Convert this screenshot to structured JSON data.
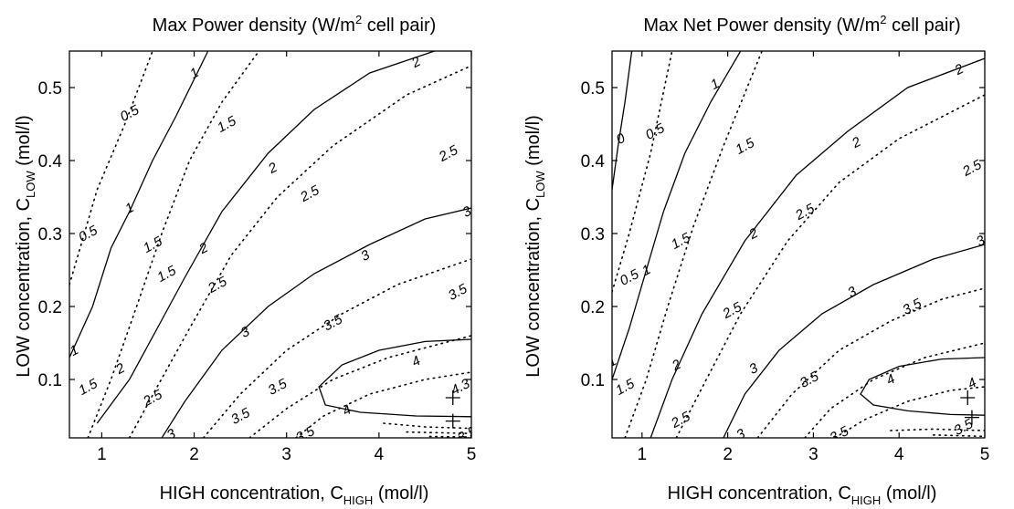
{
  "chart_data": [
    {
      "type": "contour",
      "title_main": "Max Power density (W/m",
      "title_sup": "2",
      "title_end": " cell pair)",
      "xlabel_main": "HIGH concentration, C",
      "xlabel_sub": "HIGH",
      "xlabel_end": " (mol/l)",
      "ylabel_main": "LOW concentration, C",
      "ylabel_sub": "LOW",
      "ylabel_end": " (mol/l)",
      "xlim": [
        0.65,
        5.0
      ],
      "ylim": [
        0.02,
        0.55
      ],
      "xticks": [
        "1",
        "2",
        "3",
        "4",
        "5"
      ],
      "xtick_values": [
        1,
        2,
        3,
        4,
        5
      ],
      "yticks": [
        "0.1",
        "0.2",
        "0.3",
        "0.4",
        "0.5"
      ],
      "ytick_values": [
        0.1,
        0.2,
        0.3,
        0.4,
        0.5
      ],
      "solid_contours": [
        {
          "level": 1,
          "points": [
            [
              0.65,
              0.13
            ],
            [
              0.9,
              0.2
            ],
            [
              1.1,
              0.28
            ],
            [
              1.3,
              0.33
            ],
            [
              1.55,
              0.4
            ],
            [
              1.8,
              0.46
            ],
            [
              2.15,
              0.55
            ]
          ]
        },
        {
          "level": 2,
          "points": [
            [
              0.95,
              0.04
            ],
            [
              1.3,
              0.1
            ],
            [
              1.6,
              0.17
            ],
            [
              1.9,
              0.24
            ],
            [
              2.3,
              0.33
            ],
            [
              2.8,
              0.41
            ],
            [
              3.3,
              0.47
            ],
            [
              3.9,
              0.52
            ],
            [
              4.6,
              0.55
            ]
          ]
        },
        {
          "level": 3,
          "points": [
            [
              1.65,
              0.02
            ],
            [
              1.9,
              0.07
            ],
            [
              2.3,
              0.14
            ],
            [
              2.8,
              0.2
            ],
            [
              3.3,
              0.245
            ],
            [
              3.9,
              0.285
            ],
            [
              4.5,
              0.32
            ],
            [
              5.0,
              0.335
            ]
          ]
        },
        {
          "level": 4,
          "points": [
            [
              5.0,
              0.155
            ],
            [
              4.5,
              0.152
            ],
            [
              4.0,
              0.14
            ],
            [
              3.6,
              0.12
            ],
            [
              3.35,
              0.09
            ],
            [
              3.42,
              0.065
            ],
            [
              3.8,
              0.055
            ],
            [
              4.4,
              0.05
            ],
            [
              5.0,
              0.049
            ]
          ]
        }
      ],
      "dotted_contours": [
        {
          "points": [
            [
              0.65,
              0.23
            ],
            [
              0.95,
              0.36
            ],
            [
              1.25,
              0.45
            ],
            [
              1.55,
              0.55
            ]
          ]
        },
        {
          "points": [
            [
              0.85,
              0.02
            ],
            [
              1.1,
              0.1
            ],
            [
              1.35,
              0.19
            ],
            [
              1.65,
              0.3
            ],
            [
              1.95,
              0.4
            ],
            [
              2.3,
              0.48
            ],
            [
              2.7,
              0.55
            ]
          ]
        },
        {
          "points": [
            [
              1.3,
              0.02
            ],
            [
              1.6,
              0.09
            ],
            [
              1.95,
              0.17
            ],
            [
              2.4,
              0.27
            ],
            [
              2.9,
              0.35
            ],
            [
              3.5,
              0.42
            ],
            [
              4.3,
              0.49
            ],
            [
              5.0,
              0.53
            ]
          ]
        },
        {
          "points": [
            [
              2.1,
              0.02
            ],
            [
              2.5,
              0.08
            ],
            [
              3.0,
              0.14
            ],
            [
              3.6,
              0.19
            ],
            [
              4.2,
              0.23
            ],
            [
              5.0,
              0.265
            ]
          ]
        },
        {
          "points": [
            [
              2.6,
              0.02
            ],
            [
              3.0,
              0.06
            ],
            [
              3.5,
              0.1
            ],
            [
              4.1,
              0.13
            ],
            [
              5.0,
              0.16
            ]
          ]
        },
        {
          "points": [
            [
              3.1,
              0.02
            ],
            [
              3.4,
              0.05
            ],
            [
              3.9,
              0.08
            ],
            [
              4.5,
              0.1
            ],
            [
              5.0,
              0.11
            ]
          ]
        },
        {
          "points": [
            [
              4.05,
              0.04
            ],
            [
              4.5,
              0.035
            ],
            [
              5.0,
              0.033
            ]
          ]
        },
        {
          "points": [
            [
              4.3,
              0.028
            ],
            [
              5.0,
              0.026
            ]
          ]
        },
        {
          "points": [
            [
              4.55,
              0.022
            ],
            [
              5.0,
              0.021
            ]
          ]
        }
      ],
      "contour_labels": [
        {
          "text": "1",
          "x": 2.0,
          "y": 0.52
        },
        {
          "text": "0.5",
          "x": 1.3,
          "y": 0.465
        },
        {
          "text": "1.5",
          "x": 2.35,
          "y": 0.45
        },
        {
          "text": "2",
          "x": 4.4,
          "y": 0.535
        },
        {
          "text": "2.5",
          "x": 4.75,
          "y": 0.41
        },
        {
          "text": "2",
          "x": 2.85,
          "y": 0.39
        },
        {
          "text": "1",
          "x": 1.3,
          "y": 0.335
        },
        {
          "text": "2.5",
          "x": 3.25,
          "y": 0.355
        },
        {
          "text": "1.5",
          "x": 1.55,
          "y": 0.285
        },
        {
          "text": "2",
          "x": 2.1,
          "y": 0.28
        },
        {
          "text": "3",
          "x": 4.95,
          "y": 0.33
        },
        {
          "text": "0.5",
          "x": 0.85,
          "y": 0.3
        },
        {
          "text": "1.5",
          "x": 1.7,
          "y": 0.245
        },
        {
          "text": "2.5",
          "x": 2.25,
          "y": 0.23
        },
        {
          "text": "3",
          "x": 3.85,
          "y": 0.27
        },
        {
          "text": "3.5",
          "x": 4.85,
          "y": 0.22
        },
        {
          "text": "3",
          "x": 2.55,
          "y": 0.165
        },
        {
          "text": "3.5",
          "x": 3.5,
          "y": 0.178
        },
        {
          "text": "1",
          "x": 0.7,
          "y": 0.14
        },
        {
          "text": "2",
          "x": 1.2,
          "y": 0.115
        },
        {
          "text": "4",
          "x": 4.4,
          "y": 0.125
        },
        {
          "text": "1.5",
          "x": 0.85,
          "y": 0.09
        },
        {
          "text": "2.5",
          "x": 1.55,
          "y": 0.075
        },
        {
          "text": "3.5",
          "x": 2.9,
          "y": 0.09
        },
        {
          "text": "4.3",
          "x": 4.88,
          "y": 0.09
        },
        {
          "text": "3.5",
          "x": 2.5,
          "y": 0.05
        },
        {
          "text": "4",
          "x": 3.65,
          "y": 0.058
        },
        {
          "text": "3",
          "x": 1.75,
          "y": 0.025
        },
        {
          "text": "3.5",
          "x": 3.2,
          "y": 0.025
        },
        {
          "text": "3.5",
          "x": 4.95,
          "y": 0.025
        }
      ],
      "markers": [
        {
          "x": 4.8,
          "y": 0.075
        },
        {
          "x": 4.8,
          "y": 0.043
        }
      ]
    },
    {
      "type": "contour",
      "title_main": "Max Net Power density (W/m",
      "title_sup": "2",
      "title_end": " cell pair)",
      "xlabel_main": "HIGH concentration, C",
      "xlabel_sub": "HIGH",
      "xlabel_end": " (mol/l)",
      "ylabel_main": "LOW concentration, C",
      "ylabel_sub": "LOW",
      "ylabel_end": " (mol/l)",
      "xlim": [
        0.65,
        5.0
      ],
      "ylim": [
        0.02,
        0.55
      ],
      "xticks": [
        "1",
        "2",
        "3",
        "4",
        "5"
      ],
      "xtick_values": [
        1,
        2,
        3,
        4,
        5
      ],
      "yticks": [
        "0.1",
        "0.2",
        "0.3",
        "0.4",
        "0.5"
      ],
      "ytick_values": [
        0.1,
        0.2,
        0.3,
        0.4,
        0.5
      ],
      "solid_contours": [
        {
          "level": 0,
          "points": [
            [
              0.65,
              0.36
            ],
            [
              0.72,
              0.42
            ],
            [
              0.8,
              0.48
            ],
            [
              0.88,
              0.55
            ]
          ]
        },
        {
          "level": 1,
          "points": [
            [
              0.65,
              0.1
            ],
            [
              0.85,
              0.17
            ],
            [
              1.05,
              0.25
            ],
            [
              1.25,
              0.33
            ],
            [
              1.5,
              0.41
            ],
            [
              1.8,
              0.48
            ],
            [
              2.15,
              0.55
            ]
          ]
        },
        {
          "level": 2,
          "points": [
            [
              1.1,
              0.02
            ],
            [
              1.35,
              0.1
            ],
            [
              1.7,
              0.19
            ],
            [
              2.2,
              0.29
            ],
            [
              2.8,
              0.38
            ],
            [
              3.4,
              0.44
            ],
            [
              4.1,
              0.5
            ],
            [
              5.0,
              0.54
            ]
          ]
        },
        {
          "level": 3,
          "points": [
            [
              1.95,
              0.02
            ],
            [
              2.2,
              0.08
            ],
            [
              2.6,
              0.14
            ],
            [
              3.1,
              0.19
            ],
            [
              3.7,
              0.23
            ],
            [
              4.4,
              0.265
            ],
            [
              5.0,
              0.285
            ]
          ]
        },
        {
          "level": 4,
          "points": [
            [
              5.0,
              0.13
            ],
            [
              4.5,
              0.128
            ],
            [
              4.0,
              0.118
            ],
            [
              3.65,
              0.1
            ],
            [
              3.55,
              0.08
            ],
            [
              3.7,
              0.065
            ],
            [
              4.1,
              0.057
            ],
            [
              4.6,
              0.052
            ],
            [
              5.0,
              0.051
            ]
          ]
        }
      ],
      "dotted_contours": [
        {
          "points": [
            [
              0.65,
              0.22
            ],
            [
              0.85,
              0.3
            ],
            [
              1.1,
              0.41
            ],
            [
              1.35,
              0.55
            ]
          ]
        },
        {
          "points": [
            [
              0.8,
              0.02
            ],
            [
              1.05,
              0.1
            ],
            [
              1.3,
              0.2
            ],
            [
              1.6,
              0.31
            ],
            [
              1.95,
              0.42
            ],
            [
              2.4,
              0.55
            ]
          ]
        },
        {
          "points": [
            [
              1.4,
              0.02
            ],
            [
              1.75,
              0.1
            ],
            [
              2.15,
              0.19
            ],
            [
              2.7,
              0.29
            ],
            [
              3.3,
              0.37
            ],
            [
              4.0,
              0.43
            ],
            [
              5.0,
              0.49
            ]
          ]
        },
        {
          "points": [
            [
              2.35,
              0.02
            ],
            [
              2.75,
              0.08
            ],
            [
              3.3,
              0.14
            ],
            [
              3.9,
              0.18
            ],
            [
              4.5,
              0.21
            ],
            [
              5.0,
              0.225
            ]
          ]
        },
        {
          "points": [
            [
              2.9,
              0.02
            ],
            [
              3.2,
              0.06
            ],
            [
              3.7,
              0.1
            ],
            [
              4.3,
              0.13
            ],
            [
              5.0,
              0.15
            ]
          ]
        },
        {
          "points": [
            [
              3.25,
              0.02
            ],
            [
              3.6,
              0.045
            ],
            [
              4.1,
              0.07
            ],
            [
              4.6,
              0.085
            ],
            [
              5.0,
              0.09
            ]
          ]
        },
        {
          "points": [
            [
              3.9,
              0.03
            ],
            [
              4.4,
              0.032
            ],
            [
              5.0,
              0.03
            ]
          ]
        },
        {
          "points": [
            [
              4.4,
              0.024
            ],
            [
              5.0,
              0.022
            ]
          ]
        }
      ],
      "contour_labels": [
        {
          "text": "1",
          "x": 1.85,
          "y": 0.505
        },
        {
          "text": "2",
          "x": 4.7,
          "y": 0.525
        },
        {
          "text": "0",
          "x": 0.75,
          "y": 0.43
        },
        {
          "text": "0.5",
          "x": 1.15,
          "y": 0.44
        },
        {
          "text": "1.5",
          "x": 2.2,
          "y": 0.42
        },
        {
          "text": "2",
          "x": 3.5,
          "y": 0.425
        },
        {
          "text": "2.5",
          "x": 4.85,
          "y": 0.39
        },
        {
          "text": "1",
          "x": 1.05,
          "y": 0.25
        },
        {
          "text": "2.5",
          "x": 2.9,
          "y": 0.33
        },
        {
          "text": "1.5",
          "x": 1.45,
          "y": 0.29
        },
        {
          "text": "2",
          "x": 2.3,
          "y": 0.3
        },
        {
          "text": "3",
          "x": 4.95,
          "y": 0.29
        },
        {
          "text": "0.5",
          "x": 0.85,
          "y": 0.24
        },
        {
          "text": "3",
          "x": 3.45,
          "y": 0.22
        },
        {
          "text": "2.5",
          "x": 2.05,
          "y": 0.195
        },
        {
          "text": "3.5",
          "x": 4.15,
          "y": 0.2
        },
        {
          "text": "2",
          "x": 1.4,
          "y": 0.12
        },
        {
          "text": "3",
          "x": 2.3,
          "y": 0.115
        },
        {
          "text": "1",
          "x": 0.65,
          "y": 0.125
        },
        {
          "text": "1.5",
          "x": 0.8,
          "y": 0.09
        },
        {
          "text": "4",
          "x": 3.9,
          "y": 0.1
        },
        {
          "text": "3.5",
          "x": 2.95,
          "y": 0.1
        },
        {
          "text": "4",
          "x": 4.85,
          "y": 0.095
        },
        {
          "text": "2.5",
          "x": 1.45,
          "y": 0.045
        },
        {
          "text": "3",
          "x": 2.15,
          "y": 0.025
        },
        {
          "text": "3.5",
          "x": 3.3,
          "y": 0.025
        },
        {
          "text": "3.5",
          "x": 4.75,
          "y": 0.035
        }
      ],
      "markers": [
        {
          "x": 4.8,
          "y": 0.075
        },
        {
          "x": 4.85,
          "y": 0.048
        }
      ]
    }
  ]
}
